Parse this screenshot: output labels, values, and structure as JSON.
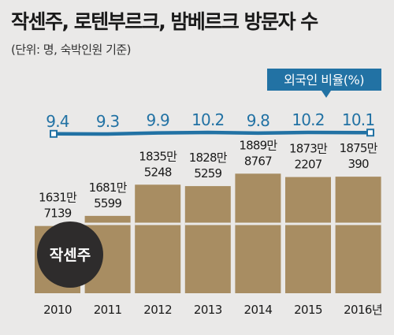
{
  "title": "작센주, 로텐부르크, 밤베르크 방문자 수",
  "subtitle": "(단위: 명, 숙박인원 기준)",
  "colors": {
    "background": "#eae9e8",
    "bar": "#a88d62",
    "line": "#2272a4",
    "badge": "#2272a4",
    "marker": "#ffffff",
    "circle": "#2e2c2c"
  },
  "chart_data": {
    "type": "bar",
    "title": "작센주, 로텐부르크, 밤베르크 방문자 수",
    "subtitle": "(단위: 명, 숙박인원 기준)",
    "categories": [
      "2010",
      "2011",
      "2012",
      "2013",
      "2014",
      "2015",
      "2016년"
    ],
    "bar_labels": [
      "1631만\n7139",
      "1681만\n5599",
      "1835만\n5248",
      "1828만\n5259",
      "1889만\n8767",
      "1873만\n2207",
      "1875만\n390"
    ],
    "series": [
      {
        "name": "작센주",
        "values": [
          16317139,
          16815599,
          18355248,
          18285259,
          18898767,
          18732207,
          18750390
        ]
      },
      {
        "name": "외국인 비율(%)",
        "values": [
          9.4,
          9.3,
          9.9,
          10.2,
          9.8,
          10.2,
          10.1
        ]
      }
    ],
    "line_labels": [
      "9.4",
      "9.3",
      "9.9",
      "10.2",
      "9.8",
      "10.2",
      "10.1"
    ],
    "legend": "top-right",
    "grid": false
  }
}
